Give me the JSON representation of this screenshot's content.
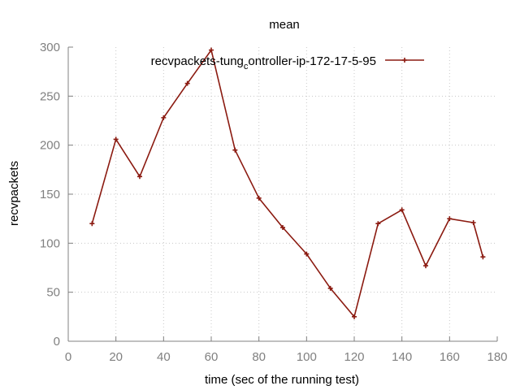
{
  "chart_data": {
    "type": "line",
    "title": "mean",
    "xlabel": "time (sec of the running test)",
    "ylabel": "recvpackets",
    "xlim": [
      0,
      180
    ],
    "ylim": [
      0,
      300
    ],
    "xticks": [
      "0",
      "20",
      "40",
      "60",
      "80",
      "100",
      "120",
      "140",
      "160",
      "180"
    ],
    "yticks": [
      "0",
      "50",
      "100",
      "150",
      "200",
      "250",
      "300"
    ],
    "grid": true,
    "legend_position": "top-right",
    "colors": {
      "series": "#8b1a10",
      "tick_text": "#808080",
      "axis": "#808080",
      "grid": "#c8c8c8"
    },
    "series": [
      {
        "name": "recvpackets-tung_controller-ip-172-17-5-95",
        "x": [
          10,
          20,
          30,
          40,
          50,
          60,
          70,
          80,
          90,
          100,
          110,
          120,
          130,
          140,
          150,
          160,
          170,
          174
        ],
        "values": [
          120,
          206,
          168,
          228,
          263,
          297,
          195,
          146,
          116,
          89,
          54,
          25,
          120,
          134,
          77,
          125,
          121,
          86
        ]
      }
    ]
  },
  "legend": {
    "main": "recvpackets-tung",
    "sub": "c",
    "tail": "ontroller-ip-172-17-5-95"
  }
}
